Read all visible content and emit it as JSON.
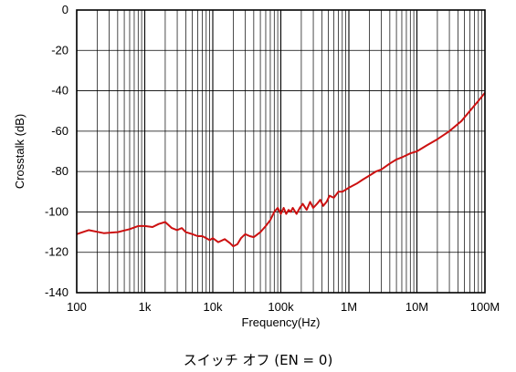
{
  "chart_data": {
    "type": "line",
    "x_scale": "log",
    "xlabel": "Frequency(Hz)",
    "ylabel": "Crosstalk (dB)",
    "xlim": [
      100,
      100000000
    ],
    "ylim": [
      -140,
      0
    ],
    "x_ticks": [
      {
        "value": 100,
        "label": "100"
      },
      {
        "value": 1000,
        "label": "1k"
      },
      {
        "value": 10000,
        "label": "10k"
      },
      {
        "value": 100000,
        "label": "100k"
      },
      {
        "value": 1000000,
        "label": "1M"
      },
      {
        "value": 10000000,
        "label": "10M"
      },
      {
        "value": 100000000,
        "label": "100M"
      }
    ],
    "y_ticks": [
      0,
      -20,
      -40,
      -60,
      -80,
      -100,
      -120,
      -140
    ],
    "grid": true,
    "series": [
      {
        "color": "#cc1111",
        "x": [
          100,
          150,
          250,
          400,
          600,
          800,
          1000,
          1300,
          1600,
          2000,
          2500,
          3000,
          3500,
          4000,
          5000,
          6000,
          7000,
          8000,
          9000,
          10000,
          12000,
          15000,
          18000,
          20000,
          23000,
          26000,
          30000,
          35000,
          40000,
          50000,
          60000,
          70000,
          80000,
          90000,
          100000,
          110000,
          120000,
          130000,
          140000,
          150000,
          170000,
          190000,
          210000,
          240000,
          270000,
          300000,
          340000,
          380000,
          420000,
          470000,
          520000,
          600000,
          700000,
          800000,
          1000000,
          1300000,
          1600000,
          2000000,
          2500000,
          3000000,
          4000000,
          5000000,
          6000000,
          8000000,
          10000000,
          14000000,
          20000000,
          30000000,
          45000000,
          60000000,
          80000000,
          100000000
        ],
        "y": [
          -111,
          -109,
          -110.5,
          -110,
          -108.5,
          -107,
          -107,
          -107.5,
          -106,
          -105,
          -108,
          -109,
          -108,
          -110,
          -111,
          -112,
          -112,
          -113,
          -114,
          -113,
          -115,
          -113.5,
          -115.5,
          -117,
          -116,
          -113,
          -111,
          -112,
          -112.5,
          -110,
          -107,
          -104,
          -100,
          -98,
          -101,
          -98,
          -101,
          -99,
          -100,
          -98,
          -101,
          -98,
          -96,
          -99,
          -95,
          -98,
          -96,
          -94,
          -97,
          -95,
          -92,
          -93,
          -90,
          -90,
          -88,
          -86,
          -84,
          -82,
          -80,
          -79,
          -76,
          -74,
          -73,
          -71,
          -70,
          -67,
          -64,
          -60,
          -55,
          -50,
          -45,
          -41
        ]
      }
    ]
  },
  "caption": {
    "text": "スイッチ オフ (EN = 0)"
  }
}
